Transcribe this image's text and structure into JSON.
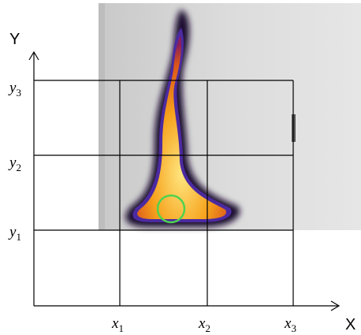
{
  "axes": {
    "y_title": "Y",
    "x_title": "X"
  },
  "y_labels": [
    {
      "letter": "y",
      "subscript": "1"
    },
    {
      "letter": "y",
      "subscript": "2"
    },
    {
      "letter": "y",
      "subscript": "3"
    }
  ],
  "x_labels": [
    {
      "letter": "x",
      "subscript": "1"
    },
    {
      "letter": "x",
      "subscript": "2"
    },
    {
      "letter": "x",
      "subscript": "3"
    }
  ]
}
